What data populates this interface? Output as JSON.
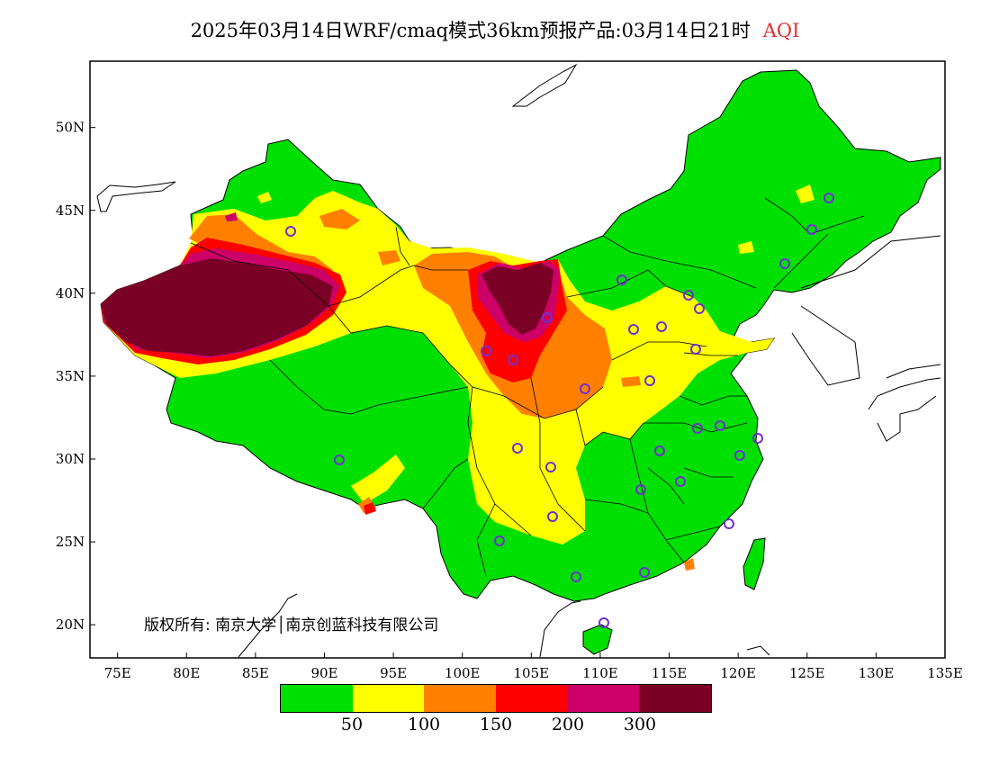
{
  "title": {
    "text": "2025年03月14日WRF/cmaq模式36km预报产品:03月14日21时",
    "variable": "AQI"
  },
  "map": {
    "lon_range": [
      73,
      135
    ],
    "lat_range": [
      18,
      54
    ],
    "lon_ticks": [
      "75E",
      "80E",
      "85E",
      "90E",
      "95E",
      "100E",
      "105E",
      "110E",
      "115E",
      "120E",
      "125E",
      "130E",
      "135E"
    ],
    "lat_ticks": [
      "20N",
      "25N",
      "30N",
      "35N",
      "40N",
      "45N",
      "50N"
    ],
    "colors": {
      "level1": "#00e000",
      "level2": "#ffff00",
      "level3": "#ff8000",
      "level4": "#ff0000",
      "level5": "#cc0066",
      "level6": "#7a0026",
      "station_marker": "#7030d0",
      "border": "#000000"
    }
  },
  "copyright": "版权所有: 南京大学│南京创蓝科技有限公司",
  "legend": {
    "labels": [
      "50",
      "100",
      "150",
      "200",
      "300"
    ]
  }
}
